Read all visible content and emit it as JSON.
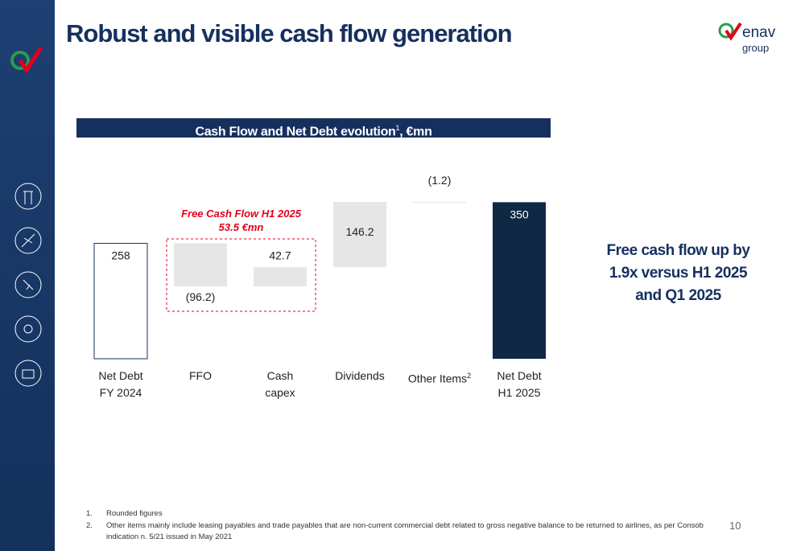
{
  "page_title": "Robust and visible cash flow generation",
  "logo": {
    "brand": "enav",
    "sub": "group"
  },
  "chart_header": {
    "text": "Cash Flow and Net Debt evolution",
    "note": "1",
    "unit": ", €mn"
  },
  "chart_data": {
    "type": "waterfall",
    "categories": [
      "Net Debt\nFY 2024",
      "FFO",
      "Cash\ncapex",
      "Dividends",
      "Other Items",
      "Net Debt\nH1 2025"
    ],
    "category_notes": [
      null,
      null,
      null,
      null,
      "2",
      null
    ],
    "measures": [
      "total",
      "relative",
      "relative",
      "relative",
      "relative",
      "total"
    ],
    "values": [
      258,
      -96.2,
      42.7,
      146.2,
      -1.2,
      350
    ],
    "value_labels": [
      "258",
      "(96.2)",
      "42.7",
      "146.2",
      "(1.2)",
      "350"
    ],
    "colors": [
      "#ffffff",
      "#e6e6e6",
      "#e6e6e6",
      "#e6e6e6",
      "#e6e6e6",
      "#0f2843"
    ],
    "annotation": {
      "title": "Free Cash Flow H1 2025",
      "value": "53.5 €mn",
      "color": "#e3001b"
    }
  },
  "highlight": "Free cash flow up by\n1.9x versus H1 2025\nand Q1 2025",
  "footnotes": [
    {
      "num": "1.",
      "text": "Rounded figures"
    },
    {
      "num": "2.",
      "text": "Other items mainly include leasing payables and trade payables that are non-current commercial debt related to gross negative balance to be returned to airlines, as per Consob indication n. 5/21 issued in May 2021"
    }
  ],
  "page_number": "10"
}
